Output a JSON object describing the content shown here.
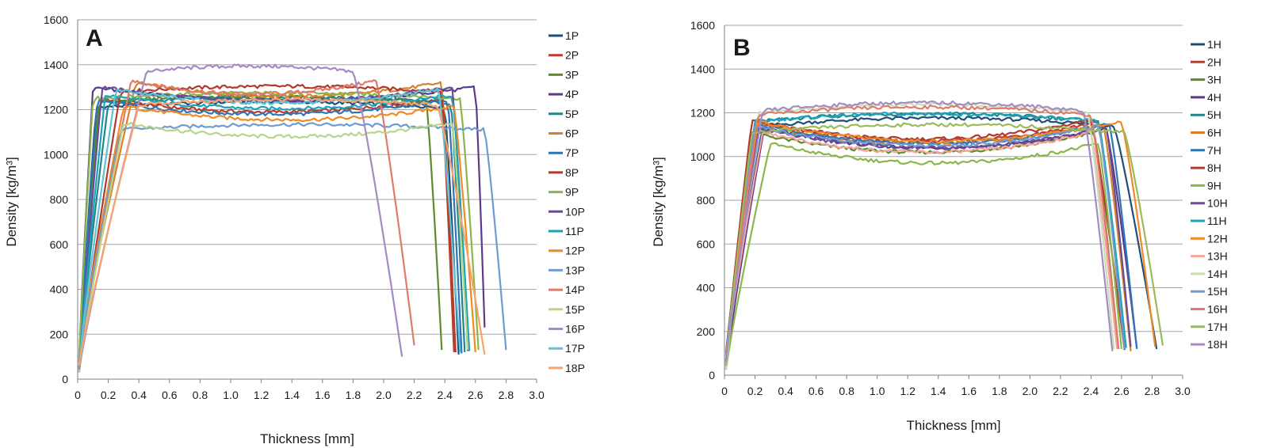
{
  "chart_data": [
    {
      "type": "line",
      "panel_label": "A",
      "xlabel": "Thickness [mm]",
      "ylabel": "Density  [kg/m³]",
      "xlim": [
        0,
        3.0
      ],
      "ylim": [
        0,
        1600
      ],
      "xticks": [
        "0",
        "0.2",
        "0.4",
        "0.6",
        "0.8",
        "1.0",
        "1.2",
        "1.4",
        "1.6",
        "1.8",
        "2.0",
        "2.2",
        "2.4",
        "2.6",
        "2.8",
        "3.0"
      ],
      "yticks": [
        "0",
        "200",
        "400",
        "600",
        "800",
        "1000",
        "1200",
        "1400",
        "1600"
      ],
      "grid": "horizontal",
      "legend": "right",
      "series": [
        {
          "name": "1P",
          "color": "#1f4e79",
          "plateau": 1210,
          "rise_end": 0.12,
          "fall_start": 2.4,
          "end": 2.49,
          "end_density": 110
        },
        {
          "name": "2P",
          "color": "#c0392b",
          "plateau": 1250,
          "rise_end": 0.15,
          "fall_start": 2.38,
          "end": 2.46,
          "end_density": 120
        },
        {
          "name": "3P",
          "color": "#5e8a2c",
          "plateau": 1235,
          "rise_end": 0.14,
          "fall_start": 2.28,
          "end": 2.38,
          "end_density": 130
        },
        {
          "name": "4P",
          "color": "#5b3a8c",
          "plateau": 1300,
          "rise_end": 0.1,
          "fall_start": 2.6,
          "end": 2.66,
          "end_density": 230
        },
        {
          "name": "5P",
          "color": "#21848f",
          "plateau": 1230,
          "rise_end": 0.2,
          "fall_start": 2.44,
          "end": 2.53,
          "end_density": 120
        },
        {
          "name": "6P",
          "color": "#d9802a",
          "plateau": 1320,
          "rise_end": 0.38,
          "fall_start": 2.38,
          "end": 2.47,
          "end_density": 120
        },
        {
          "name": "7P",
          "color": "#2e75b6",
          "plateau": 1240,
          "rise_end": 0.13,
          "fall_start": 2.42,
          "end": 2.51,
          "end_density": 115
        },
        {
          "name": "8P",
          "color": "#b03a2e",
          "plateau": 1280,
          "rise_end": 0.28,
          "fall_start": 2.38,
          "end": 2.47,
          "end_density": 120
        },
        {
          "name": "9P",
          "color": "#8db64a",
          "plateau": 1250,
          "rise_end": 0.1,
          "fall_start": 2.5,
          "end": 2.62,
          "end_density": 130
        },
        {
          "name": "10P",
          "color": "#6a4c93",
          "plateau": 1300,
          "rise_end": 0.16,
          "fall_start": 2.45,
          "end": 2.55,
          "end_density": 125
        },
        {
          "name": "11P",
          "color": "#1aa3b8",
          "plateau": 1265,
          "rise_end": 0.18,
          "fall_start": 2.45,
          "end": 2.56,
          "end_density": 125
        },
        {
          "name": "12P",
          "color": "#f08a24",
          "plateau": 1215,
          "rise_end": 0.3,
          "fall_start": 2.46,
          "end": 2.6,
          "end_density": 120
        },
        {
          "name": "13P",
          "color": "#6f9bd1",
          "plateau": 1110,
          "rise_end": 0.28,
          "fall_start": 2.66,
          "end": 2.8,
          "end_density": 130
        },
        {
          "name": "14P",
          "color": "#e07a6a",
          "plateau": 1330,
          "rise_end": 0.35,
          "fall_start": 1.95,
          "end": 2.2,
          "end_density": 150
        },
        {
          "name": "15P",
          "color": "#b7d68a",
          "plateau": 1140,
          "rise_end": 0.3,
          "fall_start": 2.45,
          "end": 2.55,
          "end_density": 130
        },
        {
          "name": "16P",
          "color": "#a58bc4",
          "plateau": 1370,
          "rise_end": 0.45,
          "fall_start": 1.8,
          "end": 2.12,
          "end_density": 100
        },
        {
          "name": "17P",
          "color": "#5fc3d6",
          "plateau": 1290,
          "rise_end": 0.25,
          "fall_start": 2.36,
          "end": 2.5,
          "end_density": 120
        },
        {
          "name": "18P",
          "color": "#f7a36b",
          "plateau": 1220,
          "rise_end": 0.4,
          "fall_start": 2.35,
          "end": 2.66,
          "end_density": 110
        }
      ]
    },
    {
      "type": "line",
      "panel_label": "B",
      "xlabel": "Thickness [mm]",
      "ylabel": "Density [kg/m³]",
      "xlim": [
        0,
        3.0
      ],
      "ylim": [
        0,
        1600
      ],
      "xticks": [
        "0",
        "0.2",
        "0.4",
        "0.6",
        "0.8",
        "1.0",
        "1.2",
        "1.4",
        "1.6",
        "1.8",
        "2.0",
        "2.2",
        "2.4",
        "2.6",
        "2.8",
        "3.0"
      ],
      "yticks": [
        "0",
        "200",
        "400",
        "600",
        "800",
        "1000",
        "1200",
        "1400",
        "1600"
      ],
      "grid": "horizontal",
      "legend": "right",
      "series": [
        {
          "name": "1H",
          "color": "#1f4e79",
          "plateau": 1140,
          "rise_end": 0.25,
          "fall_start": 2.55,
          "end": 2.83,
          "end_density": 120
        },
        {
          "name": "2H",
          "color": "#c0392b",
          "plateau": 1160,
          "rise_end": 0.2,
          "fall_start": 2.45,
          "end": 2.62,
          "end_density": 120
        },
        {
          "name": "3H",
          "color": "#5e8a2c",
          "plateau": 1110,
          "rise_end": 0.18,
          "fall_start": 2.42,
          "end": 2.58,
          "end_density": 120
        },
        {
          "name": "4H",
          "color": "#5b3a8c",
          "plateau": 1130,
          "rise_end": 0.26,
          "fall_start": 2.5,
          "end": 2.7,
          "end_density": 125
        },
        {
          "name": "5H",
          "color": "#21848f",
          "plateau": 1160,
          "rise_end": 0.22,
          "fall_start": 2.45,
          "end": 2.62,
          "end_density": 120
        },
        {
          "name": "6H",
          "color": "#d9802a",
          "plateau": 1150,
          "rise_end": 0.2,
          "fall_start": 2.48,
          "end": 2.66,
          "end_density": 110
        },
        {
          "name": "7H",
          "color": "#2e75b6",
          "plateau": 1150,
          "rise_end": 0.21,
          "fall_start": 2.52,
          "end": 2.7,
          "end_density": 120
        },
        {
          "name": "8H",
          "color": "#b03a2e",
          "plateau": 1170,
          "rise_end": 0.18,
          "fall_start": 2.4,
          "end": 2.62,
          "end_density": 115
        },
        {
          "name": "9H",
          "color": "#8db64a",
          "plateau": 1060,
          "rise_end": 0.3,
          "fall_start": 2.45,
          "end": 2.6,
          "end_density": 120
        },
        {
          "name": "10H",
          "color": "#6a4c93",
          "plateau": 1130,
          "rise_end": 0.22,
          "fall_start": 2.5,
          "end": 2.66,
          "end_density": 130
        },
        {
          "name": "11H",
          "color": "#1aa3b8",
          "plateau": 1160,
          "rise_end": 0.2,
          "fall_start": 2.45,
          "end": 2.63,
          "end_density": 125
        },
        {
          "name": "12H",
          "color": "#f08a24",
          "plateau": 1160,
          "rise_end": 0.22,
          "fall_start": 2.6,
          "end": 2.82,
          "end_density": 130
        },
        {
          "name": "13H",
          "color": "#f4a6a0",
          "plateau": 1110,
          "rise_end": 0.25,
          "fall_start": 2.4,
          "end": 2.57,
          "end_density": 120
        },
        {
          "name": "14H",
          "color": "#c6e0b4",
          "plateau": 1200,
          "rise_end": 0.22,
          "fall_start": 2.38,
          "end": 2.55,
          "end_density": 120
        },
        {
          "name": "15H",
          "color": "#6f9bd1",
          "plateau": 1140,
          "rise_end": 0.2,
          "fall_start": 2.45,
          "end": 2.62,
          "end_density": 120
        },
        {
          "name": "16H",
          "color": "#e07a6a",
          "plateau": 1190,
          "rise_end": 0.22,
          "fall_start": 2.4,
          "end": 2.58,
          "end_density": 120
        },
        {
          "name": "17H",
          "color": "#9bbb59",
          "plateau": 1110,
          "rise_end": 0.18,
          "fall_start": 2.62,
          "end": 2.87,
          "end_density": 135
        },
        {
          "name": "18H",
          "color": "#a58bc4",
          "plateau": 1210,
          "rise_end": 0.25,
          "fall_start": 2.35,
          "end": 2.54,
          "end_density": 110
        }
      ]
    }
  ]
}
